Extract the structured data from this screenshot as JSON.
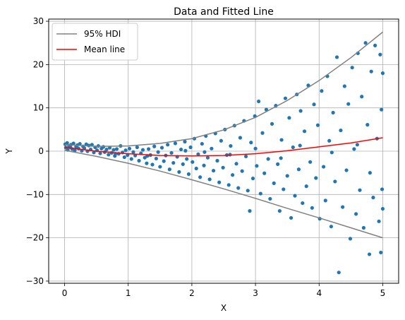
{
  "chart_data": {
    "type": "scatter",
    "title": "Data and Fitted Line",
    "xlabel": "X",
    "ylabel": "Y",
    "xlim": [
      -0.25,
      5.25
    ],
    "ylim": [
      -30.5,
      30.5
    ],
    "xticks": [
      0,
      1,
      2,
      3,
      4,
      5
    ],
    "yticks": [
      -30,
      -20,
      -10,
      0,
      10,
      20,
      30
    ],
    "grid": true,
    "legend_position": "top-left",
    "series": [
      {
        "name": "95% HDI",
        "kind": "line",
        "color": "#808080",
        "x": [
          0,
          0.5,
          1,
          1.5,
          2,
          2.5,
          3,
          3.5,
          4,
          4.5,
          5
        ],
        "y": [
          1.5,
          1.1,
          1.2,
          1.8,
          2.9,
          4.9,
          7.8,
          11.7,
          16.3,
          21.6,
          27.5
        ]
      },
      {
        "name": "",
        "kind": "line",
        "color": "#808080",
        "x": [
          0,
          0.5,
          1,
          1.5,
          2,
          2.5,
          3,
          3.5,
          4,
          4.5,
          5
        ],
        "y": [
          0.2,
          -1.2,
          -2.8,
          -4.6,
          -6.6,
          -8.7,
          -10.9,
          -13.2,
          -15.4,
          -17.7,
          -20.0
        ]
      },
      {
        "name": "Mean line",
        "kind": "line",
        "color": "#ff0000",
        "x": [
          0,
          0.5,
          1,
          1.5,
          2,
          2.5,
          3,
          3.5,
          4,
          4.5,
          5
        ],
        "y": [
          0.9,
          0.0,
          -0.6,
          -1.0,
          -1.1,
          -1.0,
          -0.6,
          0.1,
          1.0,
          1.9,
          3.1
        ]
      },
      {
        "name": "",
        "kind": "scatter",
        "color": "#1f77b4",
        "points": [
          [
            0.01,
            1.6
          ],
          [
            0.02,
            0.8
          ],
          [
            0.04,
            1.9
          ],
          [
            0.05,
            0.3
          ],
          [
            0.07,
            1.2
          ],
          [
            0.09,
            0.9
          ],
          [
            0.1,
            1.5
          ],
          [
            0.12,
            0.5
          ],
          [
            0.14,
            1.8
          ],
          [
            0.16,
            0.2
          ],
          [
            0.18,
            1.0
          ],
          [
            0.2,
            1.4
          ],
          [
            0.22,
            0.6
          ],
          [
            0.24,
            1.7
          ],
          [
            0.27,
            0.1
          ],
          [
            0.29,
            1.1
          ],
          [
            0.31,
            0.7
          ],
          [
            0.34,
            1.6
          ],
          [
            0.36,
            0.0
          ],
          [
            0.38,
            1.3
          ],
          [
            0.41,
            0.4
          ],
          [
            0.43,
            1.5
          ],
          [
            0.46,
            -0.3
          ],
          [
            0.48,
            0.9
          ],
          [
            0.51,
            0.2
          ],
          [
            0.53,
            1.2
          ],
          [
            0.56,
            -0.5
          ],
          [
            0.58,
            0.6
          ],
          [
            0.61,
            1.0
          ],
          [
            0.63,
            -0.2
          ],
          [
            0.66,
            0.4
          ],
          [
            0.69,
            -0.8
          ],
          [
            0.71,
            0.8
          ],
          [
            0.74,
            -0.4
          ],
          [
            0.77,
            0.3
          ],
          [
            0.79,
            -1.1
          ],
          [
            0.82,
            0.5
          ],
          [
            0.85,
            -0.6
          ],
          [
            0.88,
            1.2
          ],
          [
            0.91,
            -0.3
          ],
          [
            0.94,
            -1.4
          ],
          [
            0.96,
            0.2
          ],
          [
            0.99,
            -0.9
          ],
          [
            1.02,
            0.6
          ],
          [
            1.05,
            -1.8
          ],
          [
            1.08,
            -0.2
          ],
          [
            1.11,
            -1.0
          ],
          [
            1.14,
            0.9
          ],
          [
            1.17,
            -2.2
          ],
          [
            1.2,
            -0.5
          ],
          [
            1.23,
            0.3
          ],
          [
            1.26,
            -1.5
          ],
          [
            1.29,
            -2.8
          ],
          [
            1.32,
            0.5
          ],
          [
            1.35,
            -0.9
          ],
          [
            1.38,
            -3.1
          ],
          [
            1.41,
            1.1
          ],
          [
            1.44,
            -1.7
          ],
          [
            1.47,
            -0.2
          ],
          [
            1.5,
            -3.6
          ],
          [
            1.53,
            0.8
          ],
          [
            1.56,
            -2.3
          ],
          [
            1.59,
            -1.0
          ],
          [
            1.62,
            1.5
          ],
          [
            1.65,
            -4.2
          ],
          [
            1.68,
            -0.4
          ],
          [
            1.71,
            -2.7
          ],
          [
            1.74,
            1.8
          ],
          [
            1.77,
            -1.3
          ],
          [
            1.8,
            -4.8
          ],
          [
            1.83,
            0.4
          ],
          [
            1.86,
            -3.0
          ],
          [
            1.89,
            2.2
          ],
          [
            1.92,
            -1.8
          ],
          [
            1.95,
            -5.3
          ],
          [
            1.98,
            0.9
          ],
          [
            2.01,
            -2.5
          ],
          [
            2.04,
            2.9
          ],
          [
            2.07,
            -4.0
          ],
          [
            2.1,
            -0.7
          ],
          [
            2.13,
            -6.0
          ],
          [
            2.16,
            1.7
          ],
          [
            2.19,
            -3.3
          ],
          [
            2.22,
            3.5
          ],
          [
            2.25,
            -1.5
          ],
          [
            2.28,
            -6.5
          ],
          [
            2.31,
            0.6
          ],
          [
            2.34,
            -4.5
          ],
          [
            2.37,
            4.1
          ],
          [
            2.4,
            -2.2
          ],
          [
            2.43,
            -7.2
          ],
          [
            2.46,
            2.4
          ],
          [
            2.49,
            -3.8
          ],
          [
            2.52,
            5.0
          ],
          [
            2.55,
            -0.9
          ],
          [
            2.58,
            -7.8
          ],
          [
            2.61,
            1.2
          ],
          [
            2.64,
            -5.5
          ],
          [
            2.67,
            5.9
          ],
          [
            2.7,
            -2.9
          ],
          [
            2.73,
            -8.5
          ],
          [
            2.76,
            3.1
          ],
          [
            2.79,
            -4.6
          ],
          [
            2.82,
            7.0
          ],
          [
            2.85,
            -1.2
          ],
          [
            2.88,
            -9.1
          ],
          [
            2.91,
            -13.8
          ],
          [
            2.93,
            2.0
          ],
          [
            2.96,
            -6.3
          ],
          [
            2.99,
            8.1
          ],
          [
            3.02,
            -3.4
          ],
          [
            3.05,
            11.5
          ],
          [
            3.08,
            -9.8
          ],
          [
            3.11,
            4.2
          ],
          [
            3.14,
            -5.1
          ],
          [
            3.17,
            9.6
          ],
          [
            3.2,
            -1.8
          ],
          [
            3.23,
            -11.0
          ],
          [
            3.26,
            6.3
          ],
          [
            3.29,
            -7.4
          ],
          [
            3.32,
            10.5
          ],
          [
            3.35,
            -3.0
          ],
          [
            3.38,
            -13.8
          ],
          [
            3.41,
            2.6
          ],
          [
            3.44,
            -8.8
          ],
          [
            3.47,
            12.2
          ],
          [
            3.5,
            -5.7
          ],
          [
            3.53,
            7.7
          ],
          [
            3.56,
            -15.4
          ],
          [
            3.59,
            0.9
          ],
          [
            3.62,
            -10.3
          ],
          [
            3.65,
            13.1
          ],
          [
            3.68,
            -4.2
          ],
          [
            3.71,
            9.3
          ],
          [
            3.74,
            -12.0
          ],
          [
            3.77,
            4.6
          ],
          [
            3.8,
            -8.1
          ],
          [
            3.83,
            15.2
          ],
          [
            3.86,
            -2.5
          ],
          [
            3.89,
            -13.1
          ],
          [
            3.92,
            10.8
          ],
          [
            3.95,
            -6.2
          ],
          [
            3.98,
            6.0
          ],
          [
            4.01,
            -15.6
          ],
          [
            4.04,
            13.9
          ],
          [
            4.07,
            -3.6
          ],
          [
            4.1,
            -11.4
          ],
          [
            4.13,
            17.3
          ],
          [
            4.16,
            2.4
          ],
          [
            4.19,
            -17.4
          ],
          [
            4.22,
            8.9
          ],
          [
            4.25,
            -7.0
          ],
          [
            4.28,
            21.7
          ],
          [
            4.31,
            -28.0
          ],
          [
            4.34,
            4.8
          ],
          [
            4.37,
            -12.9
          ],
          [
            4.4,
            15.0
          ],
          [
            4.43,
            -4.4
          ],
          [
            4.46,
            10.9
          ],
          [
            4.49,
            -20.2
          ],
          [
            4.52,
            19.3
          ],
          [
            4.55,
            0.5
          ],
          [
            4.58,
            -14.5
          ],
          [
            4.61,
            22.6
          ],
          [
            4.64,
            -9.0
          ],
          [
            4.67,
            12.6
          ],
          [
            4.7,
            -17.7
          ],
          [
            4.73,
            25.0
          ],
          [
            4.76,
            6.1
          ],
          [
            4.79,
            -23.8
          ],
          [
            4.82,
            18.4
          ],
          [
            4.85,
            -10.7
          ],
          [
            4.88,
            24.4
          ],
          [
            4.91,
            2.9
          ],
          [
            4.94,
            -16.2
          ],
          [
            4.96,
            22.3
          ],
          [
            4.97,
            -23.4
          ],
          [
            4.98,
            9.6
          ],
          [
            4.99,
            -8.8
          ],
          [
            5.0,
            18.0
          ],
          [
            5.0,
            -13.3
          ],
          [
            4.2,
            -0.3
          ],
          [
            3.7,
            1.3
          ],
          [
            3.0,
            0.6
          ],
          [
            2.6,
            -0.8
          ],
          [
            1.9,
            0.1
          ],
          [
            1.3,
            -1.1
          ],
          [
            0.8,
            -0.6
          ],
          [
            4.6,
            1.5
          ],
          [
            3.4,
            -1.6
          ],
          [
            2.2,
            -0.2
          ],
          [
            4.8,
            -5.0
          ]
        ]
      }
    ]
  }
}
